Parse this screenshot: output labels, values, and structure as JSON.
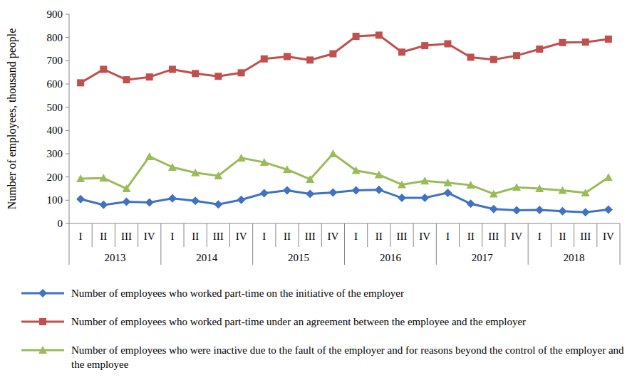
{
  "chart_data": {
    "type": "line",
    "y_label": "Number of employees, thousand people",
    "categories": [
      "I",
      "II",
      "III",
      "IV",
      "I",
      "II",
      "III",
      "IV",
      "I",
      "II",
      "III",
      "IV",
      "I",
      "II",
      "III",
      "IV",
      "I",
      "II",
      "III",
      "IV",
      "I",
      "II",
      "III",
      "IV"
    ],
    "category_groups": [
      "2013",
      "2014",
      "2015",
      "2016",
      "2017",
      "2018"
    ],
    "ylim": [
      0,
      900
    ],
    "yticks": [
      0,
      100,
      200,
      300,
      400,
      500,
      600,
      700,
      800,
      900
    ],
    "grid": false,
    "legend": "bottom",
    "series": [
      {
        "name": "Number of employees who worked part-time on the initiative of the employer",
        "color": "#3f72c0",
        "marker": "diamond",
        "values": [
          105,
          80,
          93,
          90,
          108,
          97,
          82,
          102,
          130,
          142,
          127,
          133,
          142,
          145,
          110,
          110,
          132,
          85,
          62,
          57,
          58,
          53,
          48,
          60
        ]
      },
      {
        "name": "Number of employees who worked part-time under an agreement between the employee and the employer",
        "color": "#c0504d",
        "marker": "square",
        "values": [
          605,
          663,
          618,
          630,
          663,
          645,
          633,
          648,
          708,
          718,
          703,
          730,
          805,
          810,
          737,
          765,
          773,
          715,
          705,
          722,
          750,
          778,
          780,
          793
        ]
      },
      {
        "name": "Number of employees who were inactive due to the fault of the employer and for reasons beyond the control of the employer and the employee",
        "color": "#9bbb59",
        "marker": "triangle",
        "values": [
          193,
          195,
          150,
          288,
          242,
          218,
          205,
          282,
          263,
          232,
          190,
          300,
          228,
          210,
          167,
          183,
          175,
          165,
          127,
          155,
          150,
          142,
          132,
          198
        ]
      }
    ]
  }
}
